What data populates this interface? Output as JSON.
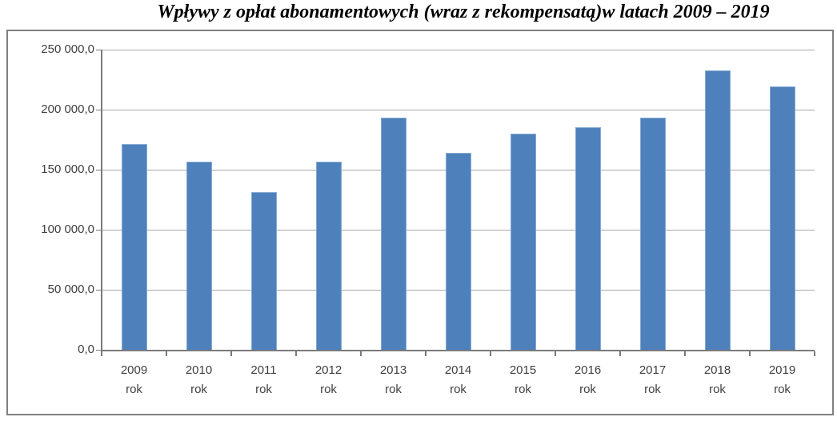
{
  "title": "Wpływy z opłat abonamentowych (wraz z rekompensatą)w latach 2009 – 2019",
  "chart_data": {
    "type": "bar",
    "title": "Wpływy z opłat abonamentowych (wraz z rekompensatą)w latach 2009 – 2019",
    "categories": [
      "2009",
      "2010",
      "2011",
      "2012",
      "2013",
      "2014",
      "2015",
      "2016",
      "2017",
      "2018",
      "2019"
    ],
    "category_suffix": "rok",
    "values": [
      171500,
      156800,
      131300,
      156800,
      193000,
      163800,
      179700,
      185000,
      193000,
      232500,
      219200
    ],
    "xlabel": "",
    "ylabel": "",
    "ylim": [
      0,
      250000
    ],
    "y_tick_step": 50000,
    "y_tick_labels": [
      "0,0",
      "50 000,0",
      "100 000,0",
      "150 000,0",
      "200 000,0",
      "250 000,0"
    ],
    "grid": true,
    "legend": false,
    "colors": {
      "bar_fill": "#4e81bb",
      "bar_border": "#84aad3",
      "gridline": "#a8a8a8",
      "axis": "#7a7a7a",
      "frame_border": "#7f7f7f",
      "tick_label": "#3f3f3f",
      "title": "#000000",
      "background": "#ffffff"
    }
  }
}
